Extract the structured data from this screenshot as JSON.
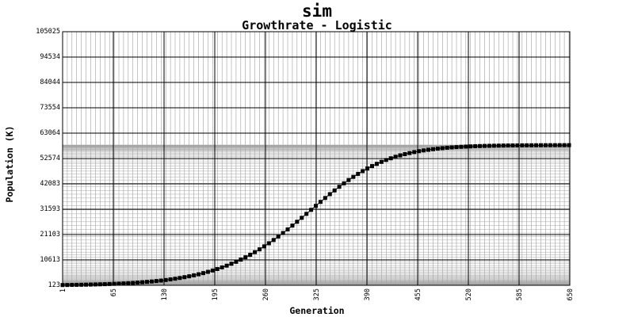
{
  "chart_data": {
    "type": "line",
    "title": "sim",
    "subtitle": "Growthrate - Logistic",
    "xlabel": "Generation",
    "ylabel": "Population (K)",
    "xlim": [
      1,
      650
    ],
    "ylim": [
      123,
      105025
    ],
    "x_ticks": [
      "1",
      "65",
      "130",
      "195",
      "260",
      "325",
      "390",
      "455",
      "520",
      "585",
      "650"
    ],
    "y_ticks": [
      "123",
      "10613",
      "21103",
      "31593",
      "42083",
      "52574",
      "63064",
      "73554",
      "84044",
      "94534",
      "105025"
    ],
    "grid": true,
    "marker": "square",
    "series": [
      {
        "x": [
          1,
          7,
          13,
          19,
          25,
          31,
          37,
          43,
          49,
          55,
          61,
          67,
          73,
          79,
          85,
          91,
          97,
          103,
          109,
          115,
          121,
          127,
          133,
          139,
          145,
          151,
          157,
          163,
          169,
          175,
          181,
          187,
          193,
          199,
          205,
          211,
          217,
          223,
          229,
          235,
          241,
          247,
          253,
          259,
          265,
          271,
          277,
          283,
          289,
          295,
          301,
          307,
          313,
          319,
          325,
          331,
          337,
          343,
          349,
          355,
          361,
          367,
          373,
          379,
          385,
          391,
          397,
          403,
          409,
          415,
          421,
          427,
          433,
          439,
          445,
          451,
          457,
          463,
          469,
          475,
          481,
          487,
          493,
          499,
          505,
          511,
          517,
          523,
          529,
          535,
          541,
          547,
          553,
          559,
          565,
          571,
          577,
          583,
          589,
          595,
          601,
          607,
          613,
          619,
          625,
          631,
          637,
          643,
          649
        ],
        "values": [
          226,
          251,
          279,
          311,
          346,
          385,
          428,
          477,
          530,
          590,
          657,
          731,
          812,
          904,
          1006,
          1117,
          1242,
          1380,
          1531,
          1700,
          1886,
          2092,
          2321,
          2569,
          2846,
          3149,
          3480,
          3846,
          4248,
          4685,
          5164,
          5685,
          6252,
          6864,
          7533,
          8245,
          9025,
          9853,
          10757,
          11715,
          12741,
          13837,
          14997,
          16226,
          17514,
          18862,
          20271,
          21741,
          23253,
          24816,
          26406,
          28031,
          29673,
          31326,
          32978,
          34617,
          36234,
          37823,
          39365,
          40863,
          42293,
          43672,
          44974,
          46204,
          47359,
          48432,
          49432,
          50352,
          51195,
          51961,
          52659,
          53293,
          53864,
          54374,
          54831,
          55236,
          55597,
          55915,
          56195,
          56444,
          56661,
          56853,
          57020,
          57164,
          57294,
          57405,
          57502,
          57585,
          57659,
          57722,
          57777,
          57824,
          57865,
          57900,
          57931,
          57958,
          57981,
          58000,
          58017,
          58031,
          58044,
          58055,
          58064,
          58072,
          58079,
          58084,
          58089,
          58094,
          58097
        ]
      }
    ]
  }
}
